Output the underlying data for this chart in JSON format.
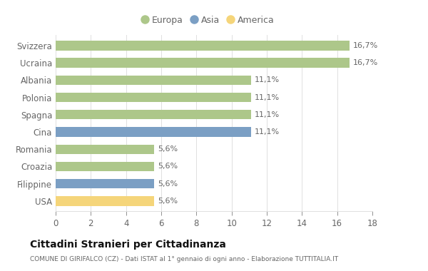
{
  "categories": [
    "Svizzera",
    "Ucraina",
    "Albania",
    "Polonia",
    "Spagna",
    "Cina",
    "Romania",
    "Croazia",
    "Filippine",
    "USA"
  ],
  "values": [
    16.7,
    16.7,
    11.1,
    11.1,
    11.1,
    11.1,
    5.6,
    5.6,
    5.6,
    5.6
  ],
  "labels": [
    "16,7%",
    "16,7%",
    "11,1%",
    "11,1%",
    "11,1%",
    "11,1%",
    "5,6%",
    "5,6%",
    "5,6%",
    "5,6%"
  ],
  "colors": [
    "#adc78a",
    "#adc78a",
    "#adc78a",
    "#adc78a",
    "#adc78a",
    "#7b9fc4",
    "#adc78a",
    "#adc78a",
    "#7b9fc4",
    "#f5d57a"
  ],
  "legend_labels": [
    "Europa",
    "Asia",
    "America"
  ],
  "legend_colors": [
    "#adc78a",
    "#7b9fc4",
    "#f5d57a"
  ],
  "title": "Cittadini Stranieri per Cittadinanza",
  "subtitle": "COMUNE DI GIRIFALCO (CZ) - Dati ISTAT al 1° gennaio di ogni anno - Elaborazione TUTTITALIA.IT",
  "xlim": [
    0,
    18
  ],
  "xticks": [
    0,
    2,
    4,
    6,
    8,
    10,
    12,
    14,
    16,
    18
  ],
  "background_color": "#ffffff",
  "bar_height": 0.55,
  "grid_color": "#e0e0e0",
  "text_color": "#666666",
  "title_color": "#111111",
  "subtitle_color": "#666666",
  "label_fontsize": 8,
  "ytick_fontsize": 8.5,
  "xtick_fontsize": 8.5
}
